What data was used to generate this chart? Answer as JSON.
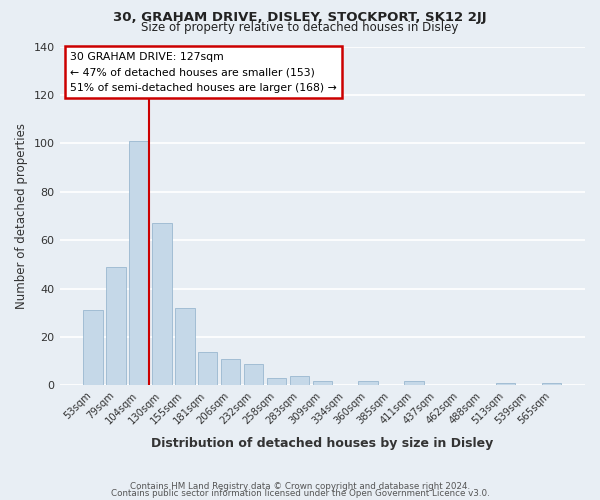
{
  "title1": "30, GRAHAM DRIVE, DISLEY, STOCKPORT, SK12 2JJ",
  "title2": "Size of property relative to detached houses in Disley",
  "xlabel": "Distribution of detached houses by size in Disley",
  "ylabel": "Number of detached properties",
  "bar_labels": [
    "53sqm",
    "79sqm",
    "104sqm",
    "130sqm",
    "155sqm",
    "181sqm",
    "206sqm",
    "232sqm",
    "258sqm",
    "283sqm",
    "309sqm",
    "334sqm",
    "360sqm",
    "385sqm",
    "411sqm",
    "437sqm",
    "462sqm",
    "488sqm",
    "513sqm",
    "539sqm",
    "565sqm"
  ],
  "bar_heights": [
    31,
    49,
    101,
    67,
    32,
    14,
    11,
    9,
    3,
    4,
    2,
    0,
    2,
    0,
    2,
    0,
    0,
    0,
    1,
    0,
    1
  ],
  "bar_color": "#c5d8e8",
  "bar_edge_color": "#9ab8d0",
  "ylim": [
    0,
    140
  ],
  "yticks": [
    0,
    20,
    40,
    60,
    80,
    100,
    120,
    140
  ],
  "marker_label": "30 GRAHAM DRIVE: 127sqm",
  "annotation_line1": "← 47% of detached houses are smaller (153)",
  "annotation_line2": "51% of semi-detached houses are larger (168) →",
  "vline_color": "#cc0000",
  "box_facecolor": "#ffffff",
  "box_edgecolor": "#cc0000",
  "footer1": "Contains HM Land Registry data © Crown copyright and database right 2024.",
  "footer2": "Contains public sector information licensed under the Open Government Licence v3.0.",
  "fig_facecolor": "#e8eef4",
  "axes_facecolor": "#e8eef4",
  "grid_color": "#ffffff",
  "tick_color": "#333333",
  "label_color": "#333333"
}
